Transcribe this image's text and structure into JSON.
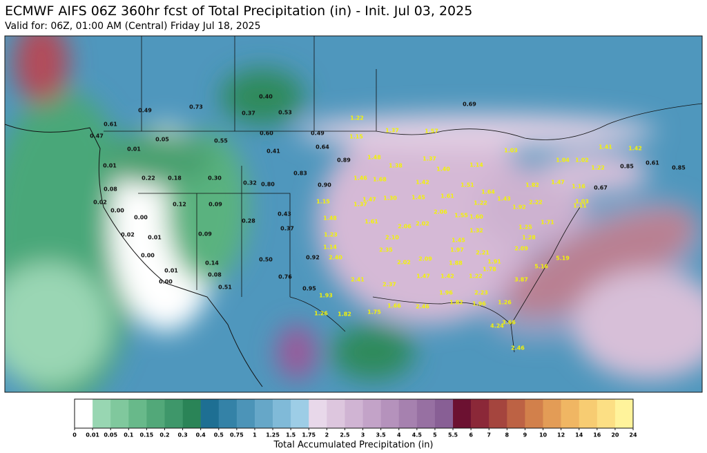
{
  "header": {
    "title": "ECMWF AIFS 06Z 360hr fcst of Total Precipitation (in) - Init. Jul 03, 2025",
    "subtitle": "Valid for: 06Z, 01:00 AM (Central) Friday Jul 18, 2025"
  },
  "colorbar": {
    "label": "Total Accumulated Precipitation (in)",
    "ticks": [
      0,
      0.01,
      0.05,
      0.1,
      0.15,
      0.2,
      0.3,
      0.4,
      0.5,
      0.75,
      1,
      1.25,
      1.5,
      1.75,
      2,
      2.5,
      3,
      3.5,
      4,
      4.5,
      5,
      5.5,
      6,
      7,
      8,
      9,
      10,
      12,
      14,
      16,
      20,
      24
    ],
    "colors": [
      "#ffffff",
      "#98d6b2",
      "#80c89d",
      "#68b98a",
      "#52a879",
      "#3e976a",
      "#2a8457",
      "#1e6f93",
      "#3482a7",
      "#4c94b8",
      "#66a7c8",
      "#80bad8",
      "#9dcde6",
      "#e8d8ea",
      "#ddc6de",
      "#d0b4d3",
      "#c3a3c8",
      "#b592bc",
      "#a681af",
      "#9770a2",
      "#885f95",
      "#6c1131",
      "#8b2838",
      "#a5453e",
      "#bd6244",
      "#d2804b",
      "#e39c56",
      "#f0b663",
      "#f7cc72",
      "#fcdf84",
      "#fff39b"
    ]
  },
  "map": {
    "dark_labels": [
      "0.73",
      "0.49",
      "0.40",
      "0.37",
      "0.53",
      "0.69",
      "0.61",
      "0.47",
      "0.01",
      "0.05",
      "0.60",
      "0.49",
      "0.55",
      "0.64",
      "0.41",
      "0.89",
      "0.01",
      "0.22",
      "0.18",
      "0.30",
      "0.32",
      "0.80",
      "0.83",
      "0.90",
      "0.08",
      "0.02",
      "0.12",
      "0.09",
      "0.00",
      "0.00",
      "0.28",
      "0.43",
      "0.37",
      "0.09",
      "0.01",
      "0.02",
      "0.00",
      "0.50",
      "0.92",
      "0.14",
      "0.08",
      "0.01",
      "0.00",
      "0.76",
      "0.51",
      "0.95",
      "0.85",
      "0.61",
      "0.85",
      "0.67"
    ],
    "bright_labels": [
      "1.22",
      "1.37",
      "1.57",
      "1.03",
      "1.41",
      "1.42",
      "1.15",
      "1.48",
      "1.38",
      "1.37",
      "1.40",
      "1.14",
      "1.04",
      "1.02",
      "1.22",
      "1.46",
      "1.68",
      "1.42",
      "1.51",
      "1.82",
      "1.47",
      "1.16",
      "1.15",
      "1.37",
      "1.47",
      "1.30",
      "1.45",
      "1.61",
      "1.64",
      "1.43",
      "1.22",
      "2.22",
      "1.92",
      "1.03",
      "1.11",
      "1.48",
      "1.61",
      "2.06",
      "2.02",
      "2.06",
      "1.55",
      "1.60",
      "1.32",
      "1.25",
      "1.71",
      "1.23",
      "2.10",
      "1.45",
      "1.28",
      "1.14",
      "2.35",
      "1.97",
      "2.21",
      "2.09",
      "2.40",
      "2.02",
      "2.09",
      "1.88",
      "1.91",
      "5.16",
      "5.19",
      "2.41",
      "1.47",
      "1.42",
      "1.22",
      "1.78",
      "3.87",
      "2.37",
      "1.93",
      "1.96",
      "2.23",
      "1.26",
      "1.82",
      "1.75",
      "1.66",
      "2.46",
      "1.82",
      "1.96",
      "1.26",
      "3.66",
      "4.24",
      "2.46"
    ]
  }
}
